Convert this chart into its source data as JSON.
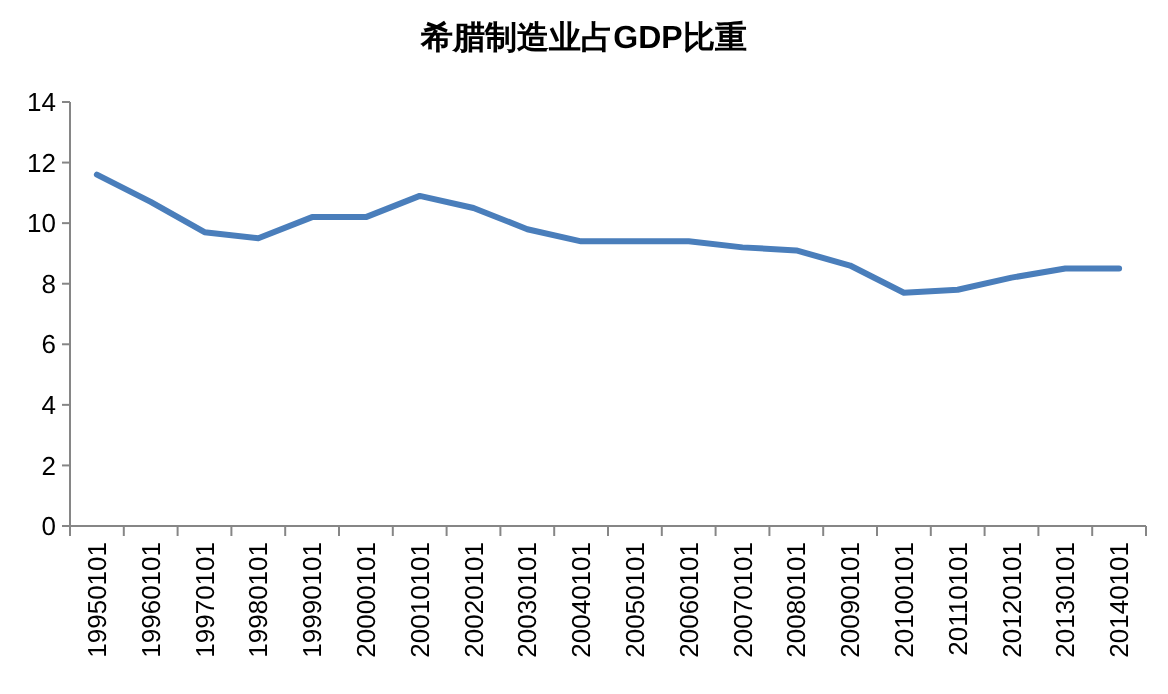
{
  "chart_data": {
    "type": "line",
    "title": "希腊制造业占GDP比重",
    "categories": [
      "19950101",
      "19960101",
      "19970101",
      "19980101",
      "19990101",
      "20000101",
      "20010101",
      "20020101",
      "20030101",
      "20040101",
      "20050101",
      "20060101",
      "20070101",
      "20080101",
      "20090101",
      "20100101",
      "20110101",
      "20120101",
      "20130101",
      "20140101"
    ],
    "series": [
      {
        "color": "#4a7ebb",
        "values": [
          11.6,
          10.7,
          9.7,
          9.5,
          10.2,
          10.2,
          10.9,
          10.5,
          9.8,
          9.4,
          9.4,
          9.4,
          9.2,
          9.1,
          8.6,
          7.7,
          7.8,
          8.2,
          8.5,
          8.5
        ]
      }
    ],
    "ylim": [
      0,
      14
    ],
    "yticks": [
      0,
      2,
      4,
      6,
      8,
      10,
      12,
      14
    ],
    "grid": false,
    "marker": "none",
    "line_style": "solid"
  }
}
